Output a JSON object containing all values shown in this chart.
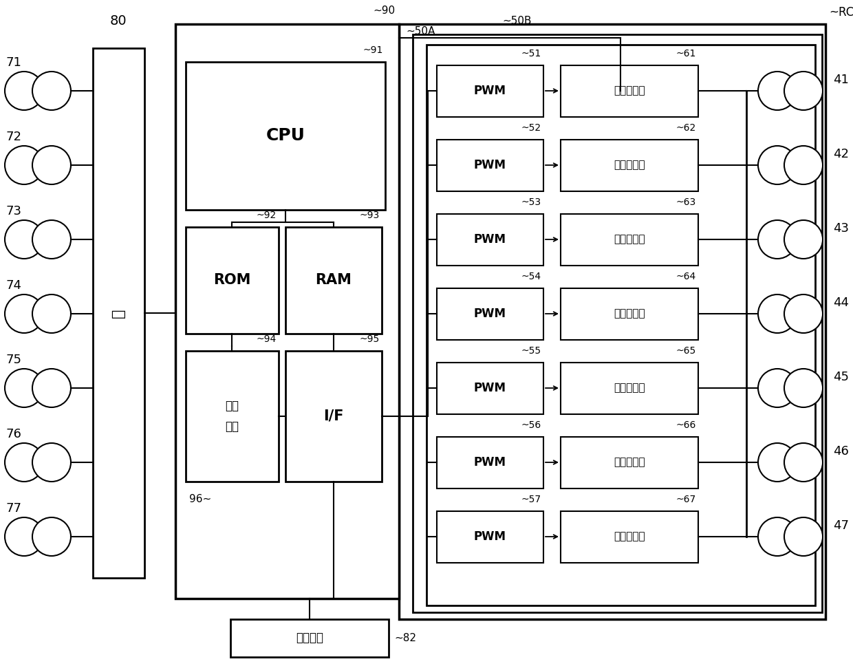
{
  "bg_color": "#ffffff",
  "fig_width": 12.4,
  "fig_height": 9.68,
  "cpu_text": "CPU",
  "rom_text": "ROM",
  "ram_text": "RAM",
  "storage_text": "存储\n单元",
  "if_text": "I/F",
  "interface_char": "口",
  "input_text": "输入装置",
  "pwm_text": "PWM",
  "amp_text": "伺服放大器",
  "pwm_ids": [
    "51",
    "52",
    "53",
    "54",
    "55",
    "56",
    "57"
  ],
  "amp_ids": [
    "61",
    "62",
    "63",
    "64",
    "65",
    "66",
    "67"
  ],
  "joint_ids": [
    "41",
    "42",
    "43",
    "44",
    "45",
    "46",
    "47"
  ],
  "sensor_ids": [
    "71",
    "72",
    "73",
    "74",
    "75",
    "76",
    "77"
  ],
  "label_80": "80",
  "label_90": "90",
  "label_91": "91",
  "label_92": "92",
  "label_93": "93",
  "label_94": "94",
  "label_95": "95",
  "label_96": "96",
  "label_50A": "50A",
  "label_50B": "50B",
  "label_RC": "RC",
  "label_82": "82"
}
